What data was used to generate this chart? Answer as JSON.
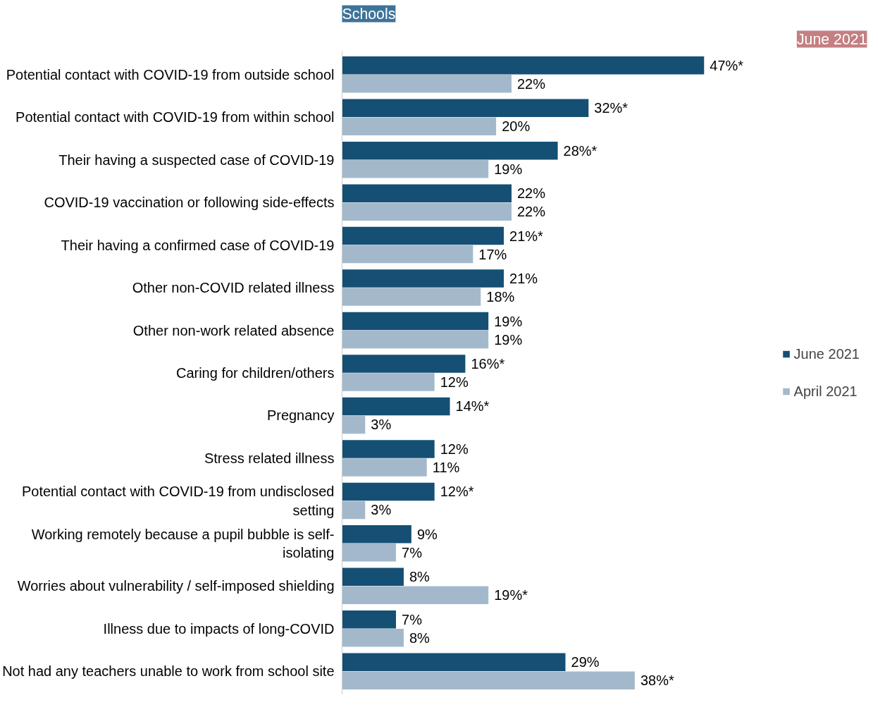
{
  "chart_data": {
    "type": "bar",
    "orientation": "horizontal",
    "title": "Schools",
    "subtitle": "June 2021",
    "categories": [
      "Potential contact with COVID-19 from outside school",
      "Potential contact with COVID-19 from within school",
      "Their having a suspected case of COVID-19",
      "COVID-19 vaccination or following side-effects",
      "Their having a confirmed case of COVID-19",
      "Other non-COVID related illness",
      "Other non-work related absence",
      "Caring for children/others",
      "Pregnancy",
      "Stress related illness",
      "Potential contact with COVID-19 from undisclosed setting",
      "Working remotely because a pupil bubble is self-isolating",
      "Worries about vulnerability / self-imposed shielding",
      "Illness due to impacts of long-COVID",
      "Not had any teachers unable to work from school site"
    ],
    "series": [
      {
        "name": "June 2021",
        "color": "#154f74",
        "values": [
          47,
          32,
          28,
          22,
          21,
          21,
          19,
          16,
          14,
          12,
          12,
          9,
          8,
          7,
          29
        ],
        "value_labels": [
          "47%*",
          "32%*",
          "28%*",
          "22%",
          "21%*",
          "21%",
          "19%",
          "16%*",
          "14%*",
          "12%",
          "12%*",
          "9%",
          "8%",
          "7%",
          "29%"
        ]
      },
      {
        "name": "April 2021",
        "color": "#a3b9cb",
        "values": [
          22,
          20,
          19,
          22,
          17,
          18,
          19,
          12,
          3,
          11,
          3,
          7,
          19,
          8,
          38
        ],
        "value_labels": [
          "22%",
          "20%",
          "19%",
          "22%",
          "17%",
          "18%",
          "19%",
          "12%",
          "3%",
          "11%",
          "3%",
          "7%",
          "19%*",
          "8%",
          "38%*"
        ]
      }
    ],
    "legend": "right",
    "grid": false
  }
}
